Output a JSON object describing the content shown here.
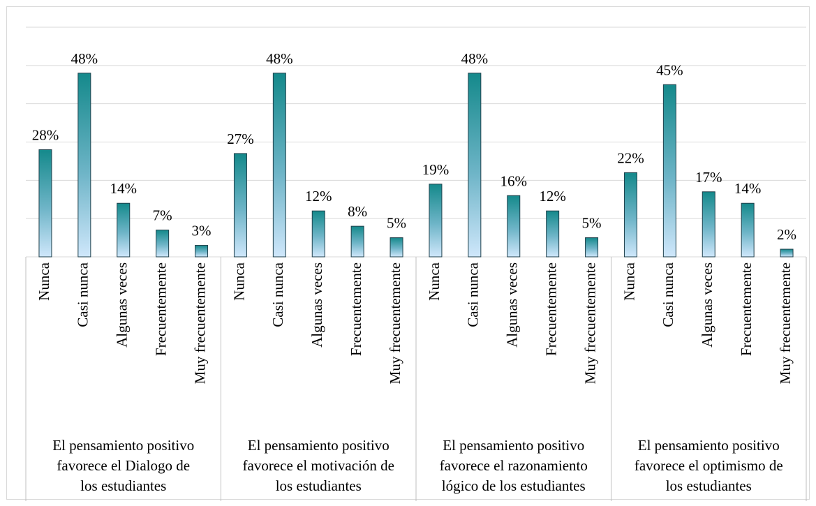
{
  "chart_data": {
    "type": "bar",
    "groups": [
      {
        "label_lines": [
          "El pensamiento positivo",
          "favorece el Dialogo de",
          "los estudiantes"
        ],
        "categories": [
          "Nunca",
          "Casi nunca",
          "Algunas veces",
          "Frecuentemente",
          "Muy frecuentemente"
        ],
        "values": [
          28,
          48,
          14,
          7,
          3
        ],
        "value_labels": [
          "28%",
          "48%",
          "14%",
          "7%",
          "3%"
        ]
      },
      {
        "label_lines": [
          "El pensamiento positivo",
          "favorece el motivación de",
          "los estudiantes"
        ],
        "categories": [
          "Nunca",
          "Casi nunca",
          "Algunas veces",
          "Frecuentemente",
          "Muy frecuentemente"
        ],
        "values": [
          27,
          48,
          12,
          8,
          5
        ],
        "value_labels": [
          "27%",
          "48%",
          "12%",
          "8%",
          "5%"
        ]
      },
      {
        "label_lines": [
          "El pensamiento positivo",
          "favorece el razonamiento",
          "lógico de los estudiantes"
        ],
        "categories": [
          "Nunca",
          "Casi nunca",
          "Algunas veces",
          "Frecuentemente",
          "Muy frecuentemente"
        ],
        "values": [
          19,
          48,
          16,
          12,
          5
        ],
        "value_labels": [
          "19%",
          "48%",
          "16%",
          "12%",
          "5%"
        ]
      },
      {
        "label_lines": [
          "El pensamiento positivo",
          "favorece el optimismo de",
          "los estudiantes"
        ],
        "categories": [
          "Nunca",
          "Casi nunca",
          "Algunas veces",
          "Frecuentemente",
          "Muy frecuentemente"
        ],
        "values": [
          22,
          45,
          17,
          14,
          2
        ],
        "value_labels": [
          "22%",
          "45%",
          "17%",
          "14%",
          "2%"
        ]
      }
    ],
    "color": "#14898b",
    "ylim": [
      0,
      60
    ],
    "yticks": [
      0,
      10,
      20,
      30,
      40,
      50,
      60
    ],
    "grid": true
  }
}
